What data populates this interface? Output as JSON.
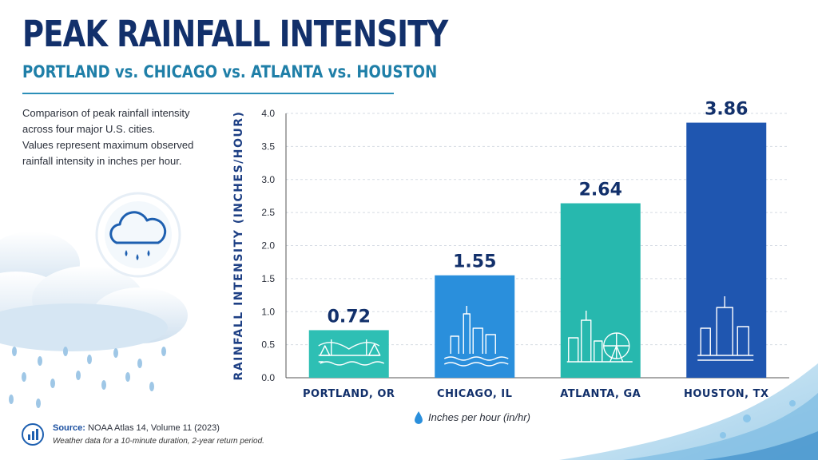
{
  "header": {
    "title": "PEAK RAINFALL INTENSITY",
    "subtitle": "PORTLAND vs. CHICAGO vs. ATLANTA vs. HOUSTON"
  },
  "description": [
    "Comparison of peak rainfall intensity",
    "across four major U.S. cities.",
    "Values represent maximum observed",
    "rainfall intensity in inches per hour."
  ],
  "source": {
    "label": "Source:",
    "text": "NOAA Atlas 14, Volume 11 (2023)",
    "note": "Weather data for a 10-minute duration, 2-year return period."
  },
  "icons": [
    "cloud-rain-icon",
    "bar-chart-icon",
    "raindrop-icon",
    "bridge-skyline-icon",
    "chicago-skyline-icon",
    "atlanta-skyline-icon",
    "houston-skyline-icon"
  ],
  "colors": {
    "title": "#12306b",
    "subtitle": "#1f7fa8",
    "portland": "#2ebfb4",
    "chicago": "#2a8fdc",
    "atlanta": "#27b8ae",
    "houston": "#1f56b0"
  },
  "chart_data": {
    "type": "bar",
    "categories": [
      "PORTLAND, OR",
      "CHICAGO, IL",
      "ATLANTA, GA",
      "HOUSTON, TX"
    ],
    "values": [
      0.72,
      1.55,
      2.64,
      3.86
    ],
    "value_labels": [
      "0.72",
      "1.55",
      "2.64",
      "3.86"
    ],
    "ylabel": "RAINFALL INTENSITY (INCHES/HOUR)",
    "ylim": [
      0,
      4
    ],
    "yticks": [
      "0.0",
      "0.5",
      "1.0",
      "1.5",
      "2.0",
      "2.5",
      "3.0",
      "3.5",
      "4.0"
    ],
    "legend": "Inches per hour (in/hr)",
    "grid": true
  }
}
